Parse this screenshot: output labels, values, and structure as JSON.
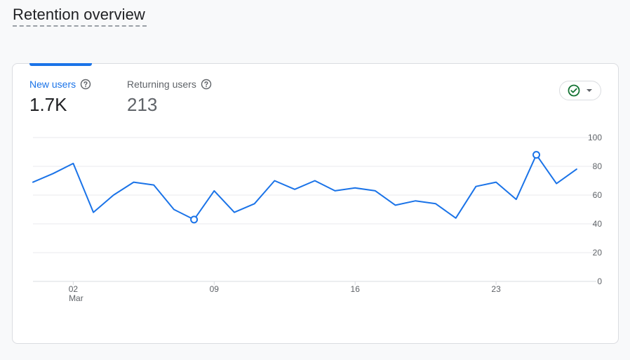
{
  "page": {
    "title": "Retention overview"
  },
  "metrics": {
    "new_users": {
      "label": "New users",
      "value": "1.7K"
    },
    "returning_users": {
      "label": "Returning users",
      "value": "213"
    }
  },
  "colors": {
    "accent": "#1a73e8",
    "check_green": "#137333"
  },
  "icons": {
    "help": "help-circle-icon",
    "compare": "check-circle-icon",
    "dropdown": "caret-down-icon"
  },
  "chart_data": {
    "type": "line",
    "series": [
      {
        "values": [
          69,
          75,
          82,
          48,
          60,
          69,
          67,
          50,
          43,
          63,
          48,
          54,
          70,
          64,
          70,
          63,
          65,
          63,
          53,
          56,
          54,
          44,
          66,
          69,
          57,
          88,
          68,
          78
        ]
      }
    ],
    "highlighted_points": [
      8,
      25
    ],
    "x_tick_labels": [
      {
        "index": 2,
        "label": "02",
        "sublabel": "Mar"
      },
      {
        "index": 9,
        "label": "09",
        "sublabel": ""
      },
      {
        "index": 16,
        "label": "16",
        "sublabel": ""
      },
      {
        "index": 23,
        "label": "23",
        "sublabel": ""
      }
    ],
    "y_ticks": [
      "0",
      "20",
      "40",
      "60",
      "80",
      "100"
    ],
    "ylim": [
      0,
      100
    ],
    "xlabel": "",
    "ylabel": "",
    "title": "",
    "grid": true,
    "y_axis_side": "right"
  }
}
